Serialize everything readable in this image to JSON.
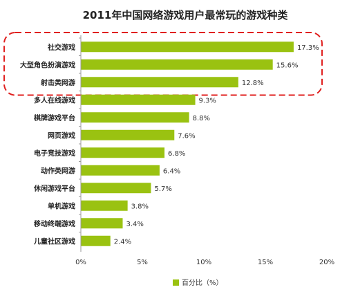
{
  "chart_data": {
    "type": "bar",
    "orientation": "horizontal",
    "title": "2011年中国网络游戏用户最常玩的游戏种类",
    "categories": [
      "社交游戏",
      "大型角色扮演游戏",
      "射击类网游",
      "多人在线游戏",
      "棋牌游戏平台",
      "网页游戏",
      "电子竞技游戏",
      "动作类网游",
      "休闲游戏平台",
      "单机游戏",
      "移动终端游戏",
      "儿童社区游戏"
    ],
    "values": [
      17.3,
      15.6,
      12.8,
      9.3,
      8.8,
      7.6,
      6.8,
      6.4,
      5.7,
      3.8,
      3.4,
      2.4
    ],
    "data_labels": [
      "17.3%",
      "15.6%",
      "12.8%",
      "9.3%",
      "8.8%",
      "7.6%",
      "6.8%",
      "6.4%",
      "5.7%",
      "3.8%",
      "3.4%",
      "2.4%"
    ],
    "series": [
      {
        "name": "百分比（%）",
        "values": [
          17.3,
          15.6,
          12.8,
          9.3,
          8.8,
          7.6,
          6.8,
          6.4,
          5.7,
          3.8,
          3.4,
          2.4
        ]
      }
    ],
    "xlim": [
      0,
      20
    ],
    "x_ticks": [
      0,
      5,
      10,
      15,
      20
    ],
    "x_tick_labels": [
      "0%",
      "5%",
      "10%",
      "15%",
      "20%"
    ],
    "legend": "bottom",
    "legend_label": "百分比（%）",
    "grid": false,
    "highlight": {
      "categories": [
        "社交游戏",
        "大型角色扮演游戏",
        "射击类网游"
      ],
      "style": "red-dashed-rounded-box"
    },
    "colors": {
      "bar": "#9ac211",
      "highlight": "#e0201f",
      "axis": "#999999",
      "text": "#222222"
    }
  }
}
